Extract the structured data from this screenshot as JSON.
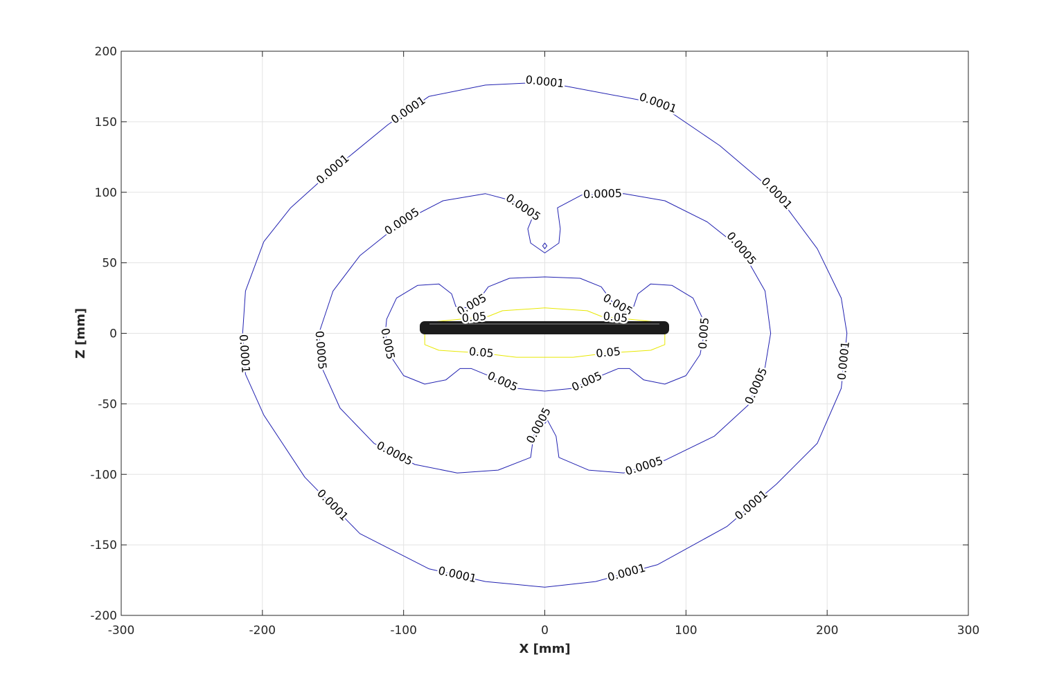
{
  "chart_data": {
    "type": "contour",
    "xlabel": "X [mm]",
    "ylabel": "Z [mm]",
    "xlim": [
      -300,
      300
    ],
    "ylim": [
      -200,
      200
    ],
    "xticks": [
      -300,
      -200,
      -100,
      0,
      100,
      200,
      300
    ],
    "yticks": [
      -200,
      -150,
      -100,
      -50,
      0,
      50,
      100,
      150,
      200
    ],
    "grid": true,
    "contours": [
      {
        "level": 0.0001,
        "color": "#2020b0",
        "lines": [
          {
            "x": [
              0,
              80,
              124,
              164,
              193,
              210,
              214,
              210,
              193,
              164,
              129,
              80,
              36,
              0,
              -42,
              -82,
              -131,
              -170,
              -199,
              -212,
              -214,
              -212,
              -199,
              -180,
              -150,
              -111,
              -82,
              -42
            ],
            "y": [
              178,
              163,
              133,
              99,
              60,
              25,
              0,
              -39,
              -78,
              -107,
              -137,
              -164,
              -176,
              -180,
              -176,
              -167,
              -142,
              -102,
              -58,
              -29,
              0,
              30,
              65,
              89,
              116,
              148,
              168,
              176
            ]
          }
        ]
      },
      {
        "level": 0.0005,
        "color": "#2020b0",
        "lines": [
          {
            "x": [
              0,
              -10,
              -12,
              -8,
              -23,
              -42,
              -72,
              -101,
              -131,
              -150,
              -160,
              -158,
              -145,
              -121,
              -92,
              -62,
              -33,
              -10,
              -8,
              0,
              8,
              10,
              31,
              56,
              85,
              120,
              144,
              156,
              160,
              156,
              139,
              115,
              85,
              56,
              26,
              9,
              11,
              10
            ],
            "y": [
              57,
              64,
              74,
              84,
              94,
              99,
              94,
              79,
              55,
              30,
              0,
              -24,
              -53,
              -78,
              -93,
              -99,
              -97,
              -88,
              -73,
              -58,
              -73,
              -88,
              -97,
              -99,
              -90,
              -73,
              -51,
              -24,
              0,
              30,
              60,
              79,
              94,
              99,
              98,
              89,
              74,
              64
            ]
          },
          {
            "x": [
              0,
              1.5,
              0,
              -1.5
            ],
            "y": [
              64,
              62,
              60,
              62
            ]
          },
          {
            "x": [
              0,
              1.5,
              0,
              -1.5
            ],
            "y": [
              -60,
              -62,
              -64,
              -62
            ]
          }
        ]
      },
      {
        "level": 0.005,
        "color": "#2020b0",
        "lines": [
          {
            "x": [
              0,
              -25,
              -40,
              -48,
              -55,
              -63,
              -66,
              -75,
              -90,
              -105,
              -112,
              -113,
              -110,
              -100,
              -85,
              -70,
              -60,
              -52,
              -40,
              -20,
              0,
              20,
              40,
              52,
              60,
              70,
              85,
              100,
              110,
              113,
              112,
              105,
              90,
              75,
              66,
              63,
              55,
              48,
              40,
              25
            ],
            "y": [
              40,
              39,
              33,
              22,
              18,
              19,
              28,
              35,
              34,
              25,
              10,
              0,
              -15,
              -30,
              -36,
              -33,
              -25,
              -25,
              -30,
              -39,
              -41,
              -39,
              -30,
              -25,
              -25,
              -33,
              -36,
              -30,
              -15,
              0,
              10,
              25,
              34,
              35,
              28,
              19,
              18,
              22,
              33,
              39
            ]
          }
        ]
      },
      {
        "level": 0.05,
        "color": "#e8e800",
        "lines": [
          {
            "x": [
              0,
              -30,
              -40,
              -60,
              -80,
              -85,
              -85,
              -75,
              -45,
              -20,
              0,
              20,
              45,
              75,
              85,
              85,
              80,
              60,
              40,
              30
            ],
            "y": [
              18,
              16,
              12,
              10,
              8,
              0,
              -8,
              -12,
              -14,
              -17,
              -17,
              -17,
              -14,
              -12,
              -8,
              0,
              8,
              10,
              12,
              16
            ]
          }
        ]
      }
    ]
  }
}
